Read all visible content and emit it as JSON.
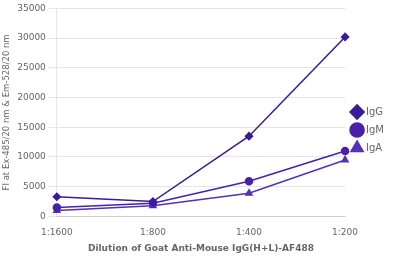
{
  "chart_data": {
    "type": "line",
    "xlabel": "Dilution of Goat Anti-Mouse IgG(H+L)-AF488",
    "ylabel": "FI at Ex-485/20 nm & Em-528/20 nm",
    "categories": [
      "1:1600",
      "1:800",
      "1:400",
      "1:200"
    ],
    "series": [
      {
        "name": "IgG",
        "color": "#3a1a9e",
        "marker": "diamond",
        "values": [
          3300,
          2500,
          13500,
          30200
        ]
      },
      {
        "name": "IgM",
        "color": "#4a20a8",
        "marker": "circle",
        "values": [
          1500,
          2200,
          5900,
          11000
        ]
      },
      {
        "name": "IgA",
        "color": "#5530b8",
        "marker": "triangle",
        "values": [
          1000,
          1800,
          3900,
          9500
        ]
      }
    ],
    "ylim": [
      0,
      35000
    ],
    "yticks": [
      0,
      5000,
      10000,
      15000,
      20000,
      25000,
      30000,
      35000
    ],
    "grid": "y",
    "legend": "right"
  }
}
